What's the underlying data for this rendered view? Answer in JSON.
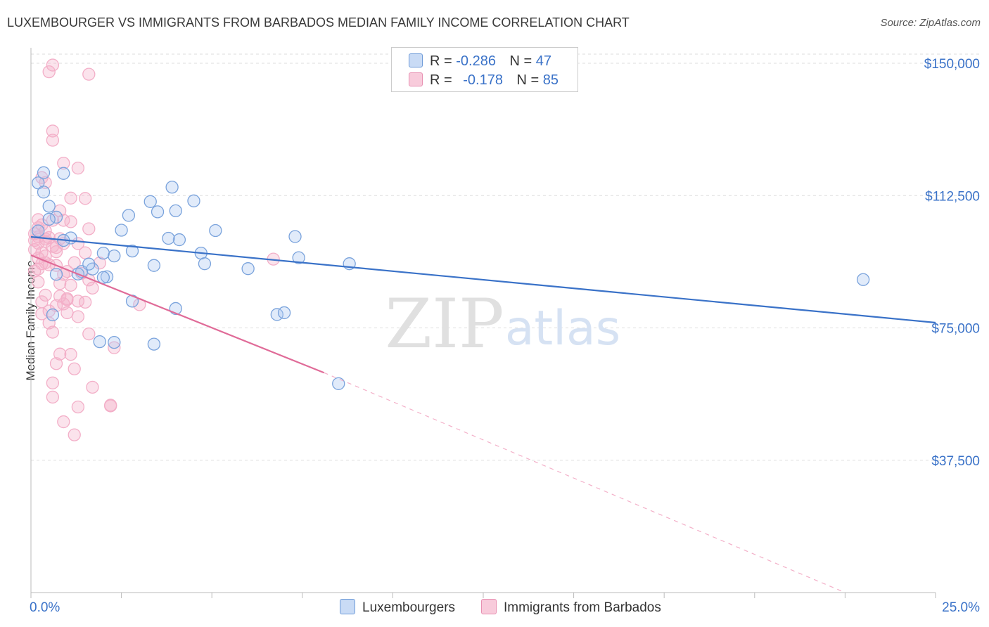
{
  "title": "LUXEMBOURGER VS IMMIGRANTS FROM BARBADOS MEDIAN FAMILY INCOME CORRELATION CHART",
  "source": "Source: ZipAtlas.com",
  "colors": {
    "blue": "#3a72c8",
    "blue_fill": "#a9c6f0",
    "pink": "#e06b98",
    "pink_fill": "#f3afc8",
    "axis_label": "#3a72c8",
    "grid": "#dddddd"
  },
  "legend": {
    "row1": {
      "r_label": "R =",
      "r_value": "-0.286",
      "n_label": "N =",
      "n_value": "47"
    },
    "row2": {
      "r_label": "R =",
      "r_value": "-0.178",
      "n_label": "N =",
      "n_value": "85"
    }
  },
  "watermark": {
    "zip": "ZIP",
    "atlas": "atlas"
  },
  "chart_data": {
    "type": "scatter",
    "title": "LUXEMBOURGER VS IMMIGRANTS FROM BARBADOS MEDIAN FAMILY INCOME CORRELATION CHART",
    "xlabel": "",
    "ylabel": "Median Family Income",
    "xlim": [
      0,
      25
    ],
    "ylim": [
      0,
      153000
    ],
    "x_tick_labels": [
      "0.0%",
      "25.0%"
    ],
    "y_ticks": [
      37500,
      75000,
      112500,
      150000
    ],
    "y_tick_labels": [
      "$37,500",
      "$75,000",
      "$112,500",
      "$150,000"
    ],
    "legend_position": "top-center",
    "series": [
      {
        "name": "Luxembourgers",
        "color": "#3a72c8",
        "trend": {
          "x0": 0,
          "y0": 100800,
          "x1": 25,
          "y1": 76500
        },
        "points": [
          [
            0.2,
            116100
          ],
          [
            0.35,
            119000
          ],
          [
            0.35,
            113500
          ],
          [
            0.5,
            109500
          ],
          [
            0.9,
            118800
          ],
          [
            0.2,
            102500
          ],
          [
            0.7,
            106400
          ],
          [
            0.5,
            105800
          ],
          [
            1.1,
            100500
          ],
          [
            0.9,
            99800
          ],
          [
            2.0,
            96200
          ],
          [
            2.5,
            102700
          ],
          [
            3.3,
            110800
          ],
          [
            4.7,
            96200
          ],
          [
            2.8,
            96800
          ],
          [
            2.3,
            95400
          ],
          [
            3.5,
            107900
          ],
          [
            4.0,
            108200
          ],
          [
            3.9,
            114900
          ],
          [
            4.5,
            111000
          ],
          [
            5.1,
            102600
          ],
          [
            4.1,
            100000
          ],
          [
            3.8,
            100400
          ],
          [
            2.7,
            106900
          ],
          [
            7.3,
            100900
          ],
          [
            7.4,
            94900
          ],
          [
            8.8,
            93200
          ],
          [
            4.8,
            93200
          ],
          [
            6.0,
            91800
          ],
          [
            3.4,
            92700
          ],
          [
            1.7,
            91700
          ],
          [
            2.1,
            89500
          ],
          [
            1.4,
            91000
          ],
          [
            2.0,
            89300
          ],
          [
            1.6,
            93100
          ],
          [
            1.3,
            90300
          ],
          [
            0.7,
            90200
          ],
          [
            2.8,
            82600
          ],
          [
            4.0,
            80500
          ],
          [
            0.6,
            78700
          ],
          [
            1.9,
            71100
          ],
          [
            2.3,
            70900
          ],
          [
            3.4,
            70400
          ],
          [
            6.8,
            78800
          ],
          [
            7.0,
            79300
          ],
          [
            23.0,
            88700
          ],
          [
            8.5,
            59200
          ]
        ]
      },
      {
        "name": "Immigrants from Barbados",
        "color": "#e06b98",
        "trend": {
          "x0": 0,
          "y0": 95600,
          "x1": 8.1,
          "y1": 62300,
          "dash_x1": 22.5,
          "dash_y1": 0
        },
        "points": [
          [
            0.6,
            149500
          ],
          [
            0.5,
            147600
          ],
          [
            1.6,
            146900
          ],
          [
            0.6,
            130800
          ],
          [
            0.6,
            128200
          ],
          [
            0.9,
            121700
          ],
          [
            1.3,
            120300
          ],
          [
            0.3,
            117600
          ],
          [
            0.4,
            116200
          ],
          [
            1.1,
            111800
          ],
          [
            1.5,
            111700
          ],
          [
            0.8,
            108200
          ],
          [
            0.2,
            105700
          ],
          [
            0.6,
            105500
          ],
          [
            0.9,
            105500
          ],
          [
            1.1,
            105100
          ],
          [
            0.3,
            104200
          ],
          [
            0.2,
            103400
          ],
          [
            0.4,
            102500
          ],
          [
            1.6,
            103100
          ],
          [
            0.1,
            101700
          ],
          [
            0.2,
            100800
          ],
          [
            0.5,
            100600
          ],
          [
            0.8,
            100300
          ],
          [
            0.1,
            99800
          ],
          [
            0.4,
            99500
          ],
          [
            0.9,
            98900
          ],
          [
            1.3,
            98900
          ],
          [
            0.6,
            98100
          ],
          [
            0.7,
            97800
          ],
          [
            0.3,
            96300
          ],
          [
            0.4,
            95400
          ],
          [
            0.2,
            94800
          ],
          [
            6.7,
            94500
          ],
          [
            1.2,
            93500
          ],
          [
            1.9,
            93400
          ],
          [
            0.3,
            93200
          ],
          [
            0.5,
            92900
          ],
          [
            0.7,
            92700
          ],
          [
            0.2,
            91700
          ],
          [
            0.1,
            91100
          ],
          [
            1.0,
            91000
          ],
          [
            1.4,
            90500
          ],
          [
            0.9,
            90200
          ],
          [
            1.6,
            88600
          ],
          [
            0.2,
            88000
          ],
          [
            0.8,
            87600
          ],
          [
            1.1,
            87100
          ],
          [
            1.7,
            86300
          ],
          [
            0.4,
            84300
          ],
          [
            0.8,
            84000
          ],
          [
            1.0,
            83300
          ],
          [
            1.3,
            82600
          ],
          [
            0.3,
            82400
          ],
          [
            1.5,
            82300
          ],
          [
            0.9,
            81800
          ],
          [
            3.0,
            81600
          ],
          [
            0.7,
            81300
          ],
          [
            0.5,
            79800
          ],
          [
            1.0,
            79300
          ],
          [
            0.3,
            79000
          ],
          [
            1.3,
            78200
          ],
          [
            0.5,
            76400
          ],
          [
            0.6,
            73800
          ],
          [
            1.6,
            73300
          ],
          [
            2.3,
            69400
          ],
          [
            0.8,
            67600
          ],
          [
            1.1,
            67500
          ],
          [
            0.7,
            64900
          ],
          [
            1.2,
            63400
          ],
          [
            0.6,
            59400
          ],
          [
            1.7,
            58200
          ],
          [
            0.6,
            55400
          ],
          [
            2.2,
            53100
          ],
          [
            1.3,
            52600
          ],
          [
            0.9,
            48400
          ],
          [
            1.2,
            44700
          ],
          [
            1.0,
            83000
          ],
          [
            0.4,
            100200
          ],
          [
            0.2,
            99000
          ],
          [
            1.5,
            96300
          ],
          [
            0.1,
            97200
          ],
          [
            0.7,
            96600
          ],
          [
            0.4,
            93500
          ],
          [
            2.2,
            52900
          ]
        ]
      }
    ]
  }
}
